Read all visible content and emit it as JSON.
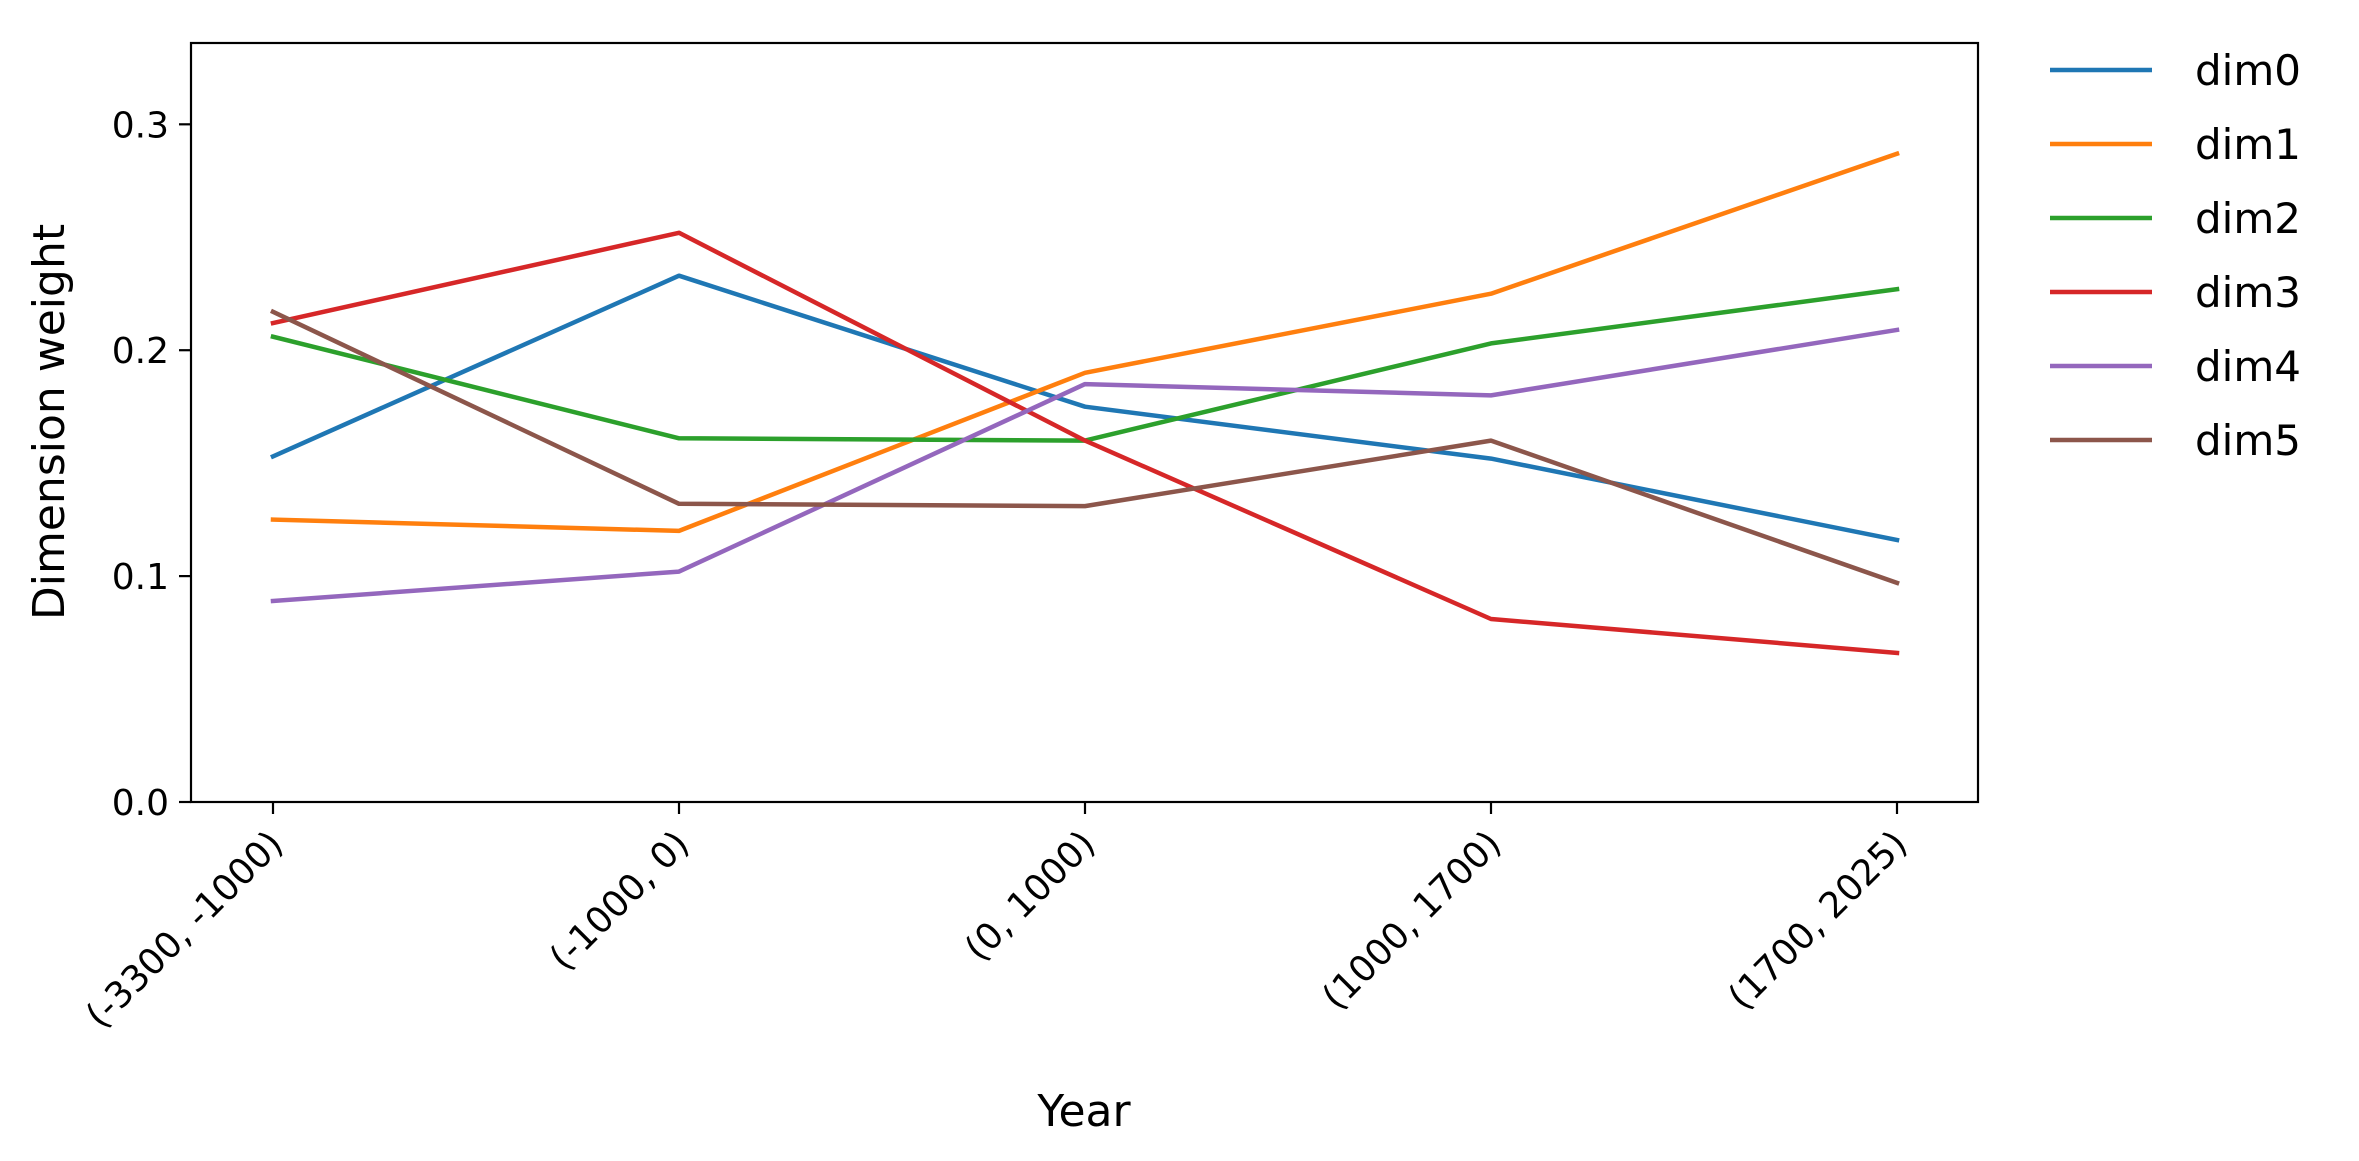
{
  "chart_data": {
    "type": "line",
    "categories": [
      "(-3300, -1000)",
      "(-1000, 0)",
      "(0, 1000)",
      "(1000, 1700)",
      "(1700, 2025)"
    ],
    "xlabel": "Year",
    "ylabel": "Dimension weight",
    "ylim": [
      0,
      0.336
    ],
    "yticks": [
      0.0,
      0.1,
      0.2,
      0.3
    ],
    "ytick_labels": [
      "0.0",
      "0.1",
      "0.2",
      "0.3"
    ],
    "grid": false,
    "legend_position": "outside-right",
    "series": [
      {
        "name": "dim0",
        "color": "#1f77b4",
        "values": [
          0.153,
          0.233,
          0.175,
          0.152,
          0.116
        ]
      },
      {
        "name": "dim1",
        "color": "#ff7f0e",
        "values": [
          0.125,
          0.12,
          0.19,
          0.225,
          0.287
        ]
      },
      {
        "name": "dim2",
        "color": "#2ca02c",
        "values": [
          0.206,
          0.161,
          0.16,
          0.203,
          0.227
        ]
      },
      {
        "name": "dim3",
        "color": "#d62728",
        "values": [
          0.212,
          0.252,
          0.16,
          0.081,
          0.066
        ]
      },
      {
        "name": "dim4",
        "color": "#9467bd",
        "values": [
          0.089,
          0.102,
          0.185,
          0.18,
          0.209
        ]
      },
      {
        "name": "dim5",
        "color": "#8c564b",
        "values": [
          0.217,
          0.132,
          0.131,
          0.16,
          0.097
        ]
      }
    ]
  }
}
